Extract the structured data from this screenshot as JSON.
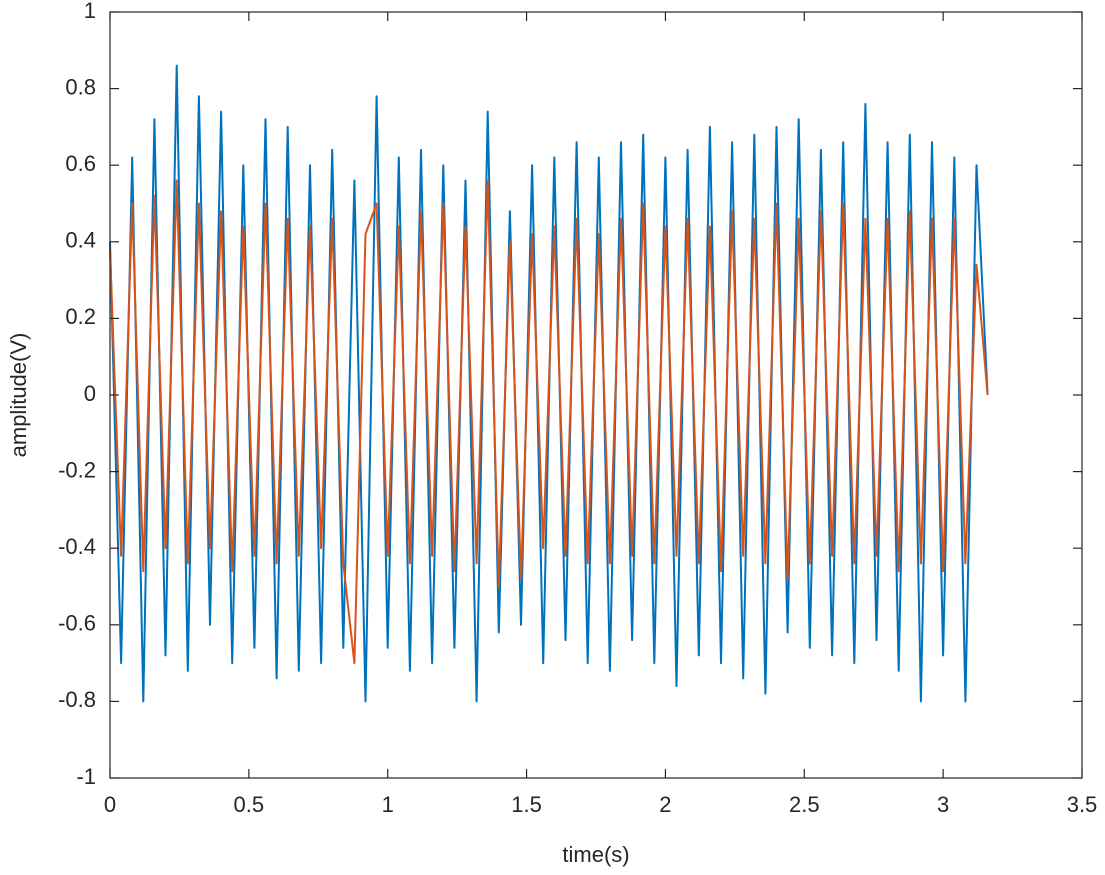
{
  "chart_data": {
    "type": "line",
    "x_label": "time(s)",
    "y_label": "amplitude(V)",
    "x": [
      0,
      0.04,
      0.08,
      0.12,
      0.16,
      0.2,
      0.24,
      0.28,
      0.32,
      0.36,
      0.4,
      0.44,
      0.48,
      0.52,
      0.56,
      0.6,
      0.64,
      0.68,
      0.72,
      0.76,
      0.8,
      0.84,
      0.88,
      0.92,
      0.96,
      1,
      1.04,
      1.08,
      1.12,
      1.16,
      1.2,
      1.24,
      1.28,
      1.32,
      1.36,
      1.4,
      1.44,
      1.48,
      1.52,
      1.56,
      1.6,
      1.64,
      1.68,
      1.72,
      1.76,
      1.8,
      1.84,
      1.88,
      1.92,
      1.96,
      2,
      2.04,
      2.08,
      2.12,
      2.16,
      2.2,
      2.24,
      2.28,
      2.32,
      2.36,
      2.4,
      2.44,
      2.48,
      2.52,
      2.56,
      2.6,
      2.64,
      2.68,
      2.72,
      2.76,
      2.8,
      2.84,
      2.88,
      2.92,
      2.96,
      3,
      3.04,
      3.08,
      3.12,
      3.16
    ],
    "series": [
      {
        "color": "#0072bd",
        "values": [
          0.4,
          -0.7,
          0.62,
          -0.8,
          0.72,
          -0.68,
          0.86,
          -0.72,
          0.78,
          -0.6,
          0.74,
          -0.7,
          0.6,
          -0.66,
          0.72,
          -0.74,
          0.7,
          -0.72,
          0.6,
          -0.7,
          0.64,
          -0.66,
          0.56,
          -0.8,
          0.78,
          -0.66,
          0.62,
          -0.72,
          0.64,
          -0.7,
          0.6,
          -0.66,
          0.56,
          -0.8,
          0.74,
          -0.62,
          0.48,
          -0.6,
          0.6,
          -0.7,
          0.62,
          -0.64,
          0.66,
          -0.7,
          0.62,
          -0.72,
          0.66,
          -0.64,
          0.68,
          -0.7,
          0.62,
          -0.76,
          0.64,
          -0.68,
          0.7,
          -0.7,
          0.66,
          -0.74,
          0.68,
          -0.78,
          0.7,
          -0.62,
          0.72,
          -0.66,
          0.64,
          -0.68,
          0.66,
          -0.7,
          0.76,
          -0.64,
          0.66,
          -0.72,
          0.68,
          -0.8,
          0.66,
          -0.68,
          0.62,
          -0.8,
          0.6,
          0
        ]
      },
      {
        "color": "#d95319",
        "values": [
          0.38,
          -0.42,
          0.5,
          -0.46,
          0.52,
          -0.4,
          0.56,
          -0.44,
          0.5,
          -0.4,
          0.48,
          -0.46,
          0.44,
          -0.42,
          0.5,
          -0.44,
          0.46,
          -0.42,
          0.44,
          -0.4,
          0.46,
          -0.44,
          -0.7,
          0.42,
          0.5,
          -0.42,
          0.44,
          -0.44,
          0.48,
          -0.42,
          0.5,
          -0.46,
          0.44,
          -0.44,
          0.56,
          -0.5,
          0.4,
          -0.48,
          0.42,
          -0.4,
          0.44,
          -0.42,
          0.46,
          -0.44,
          0.42,
          -0.44,
          0.46,
          -0.42,
          0.5,
          -0.44,
          0.44,
          -0.42,
          0.46,
          -0.44,
          0.44,
          -0.46,
          0.48,
          -0.42,
          0.46,
          -0.44,
          0.5,
          -0.48,
          0.46,
          -0.44,
          0.48,
          -0.42,
          0.5,
          -0.44,
          0.46,
          -0.42,
          0.46,
          -0.46,
          0.48,
          -0.44,
          0.46,
          -0.46,
          0.46,
          -0.44,
          0.34,
          0
        ]
      }
    ],
    "xlim": [
      0,
      3.5
    ],
    "xticks": [
      0,
      0.5,
      1,
      1.5,
      2,
      2.5,
      3,
      3.5
    ],
    "ylim": [
      -1,
      1
    ],
    "yticks": [
      -1,
      -0.8,
      -0.6,
      -0.4,
      -0.2,
      0,
      0.2,
      0.4,
      0.6,
      0.8,
      1
    ],
    "grid": false
  }
}
